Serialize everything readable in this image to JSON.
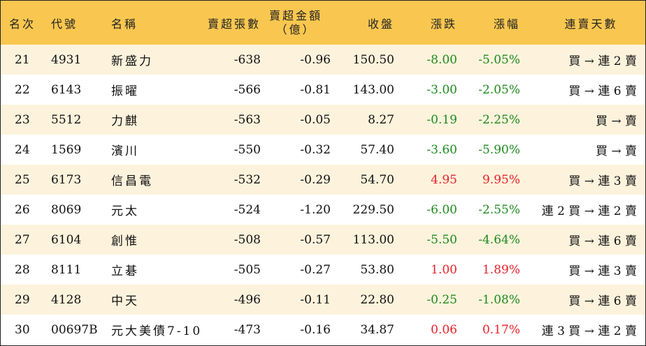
{
  "headers": {
    "rank": "名次",
    "code": "代號",
    "name": "名稱",
    "net_sell_volume": "賣超張數",
    "net_sell_amount_line1": "賣超金額",
    "net_sell_amount_line2": "（億）",
    "close": "收盤",
    "change": "漲跌",
    "change_pct": "漲幅",
    "consecutive_days": "連賣天數"
  },
  "rows": [
    {
      "rank": "21",
      "code": "4931",
      "name": "新盛力",
      "volume": "-638",
      "amount": "-0.96",
      "close": "150.50",
      "change": "-8.00",
      "pct": "-5.05%",
      "direction": "down",
      "days": "買 → 連 2 賣"
    },
    {
      "rank": "22",
      "code": "6143",
      "name": "振曜",
      "volume": "-566",
      "amount": "-0.81",
      "close": "143.00",
      "change": "-3.00",
      "pct": "-2.05%",
      "direction": "down",
      "days": "買 → 連 6 賣"
    },
    {
      "rank": "23",
      "code": "5512",
      "name": "力麒",
      "volume": "-563",
      "amount": "-0.05",
      "close": "8.27",
      "change": "-0.19",
      "pct": "-2.25%",
      "direction": "down",
      "days": "買 → 賣"
    },
    {
      "rank": "24",
      "code": "1569",
      "name": "濱川",
      "volume": "-550",
      "amount": "-0.32",
      "close": "57.40",
      "change": "-3.60",
      "pct": "-5.90%",
      "direction": "down",
      "days": "買 → 賣"
    },
    {
      "rank": "25",
      "code": "6173",
      "name": "信昌電",
      "volume": "-532",
      "amount": "-0.29",
      "close": "54.70",
      "change": "4.95",
      "pct": "9.95%",
      "direction": "up",
      "days": "買 → 連 3 賣"
    },
    {
      "rank": "26",
      "code": "8069",
      "name": "元太",
      "volume": "-524",
      "amount": "-1.20",
      "close": "229.50",
      "change": "-6.00",
      "pct": "-2.55%",
      "direction": "down",
      "days": "連 2 買 → 連 2 賣"
    },
    {
      "rank": "27",
      "code": "6104",
      "name": "創惟",
      "volume": "-508",
      "amount": "-0.57",
      "close": "113.00",
      "change": "-5.50",
      "pct": "-4.64%",
      "direction": "down",
      "days": "買 → 連 6 賣"
    },
    {
      "rank": "28",
      "code": "8111",
      "name": "立碁",
      "volume": "-505",
      "amount": "-0.27",
      "close": "53.80",
      "change": "1.00",
      "pct": "1.89%",
      "direction": "up",
      "days": "買 → 連 3 賣"
    },
    {
      "rank": "29",
      "code": "4128",
      "name": "中天",
      "volume": "-496",
      "amount": "-0.11",
      "close": "22.80",
      "change": "-0.25",
      "pct": "-1.08%",
      "direction": "down",
      "days": "買 → 連 6 賣"
    },
    {
      "rank": "30",
      "code": "00697B",
      "name": "元大美債7-10",
      "volume": "-473",
      "amount": "-0.16",
      "close": "34.87",
      "change": "0.06",
      "pct": "0.17%",
      "direction": "up",
      "days": "連 3 買 → 連 2 賣"
    }
  ],
  "colors": {
    "header_bg": "#f9c74f",
    "odd_row_bg": "#fdf3dc",
    "even_row_bg": "#ffffff",
    "up": "#e8202a",
    "down": "#1e8a1e"
  }
}
